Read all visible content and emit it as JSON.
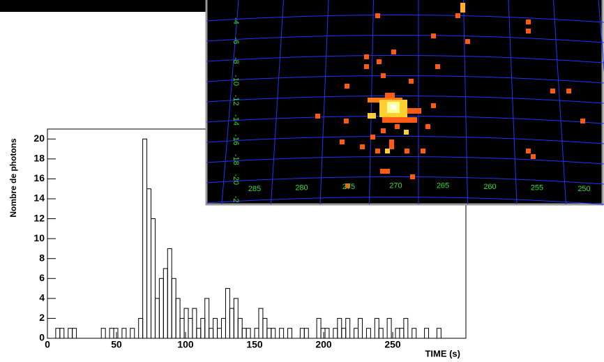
{
  "chart_data": [
    {
      "type": "histogram",
      "ylabel": "Nombre de photons",
      "xlabel": "TIME (s)",
      "bins": [
        0,
        3,
        6,
        9,
        12,
        15,
        18,
        21,
        24,
        27,
        30,
        33,
        36,
        39,
        42,
        45,
        48,
        51,
        54,
        57,
        60,
        63,
        66,
        69,
        72,
        75,
        78,
        81,
        84,
        87,
        90,
        93,
        96,
        99,
        102,
        105,
        108,
        111,
        114,
        117,
        120,
        123,
        126,
        129,
        132,
        135,
        138,
        141,
        144,
        147,
        150,
        153,
        156,
        159,
        162,
        165,
        168,
        171,
        174,
        177,
        180,
        183,
        186,
        189,
        192,
        195,
        198,
        201,
        204,
        207,
        210,
        213,
        216,
        219,
        222,
        225,
        228,
        231,
        234,
        237,
        240,
        243,
        246,
        249,
        252,
        255,
        258,
        261,
        264,
        267,
        270,
        273,
        276,
        279,
        282,
        285,
        288,
        291,
        294,
        297,
        300
      ],
      "values": [
        0,
        0,
        1,
        1,
        0,
        1,
        1,
        0,
        0,
        0,
        0,
        0,
        0,
        1,
        0,
        1,
        1,
        0,
        1,
        0,
        1,
        0,
        2,
        20,
        15,
        12,
        4,
        6,
        7,
        9,
        6,
        4,
        2,
        3,
        2,
        3,
        1,
        2,
        4,
        1,
        2,
        1,
        2,
        5,
        3,
        4,
        2,
        1,
        1,
        0,
        1,
        3,
        2,
        1,
        1,
        0,
        1,
        0,
        1,
        0,
        0,
        1,
        1,
        0,
        0,
        2,
        1,
        1,
        0,
        1,
        2,
        1,
        2,
        0,
        1,
        2,
        0,
        1,
        0,
        2,
        1,
        0,
        2,
        0,
        1,
        1,
        2,
        0,
        1,
        0,
        0,
        1,
        0,
        0,
        1,
        0,
        0,
        0,
        0,
        0
      ],
      "color": "#000000",
      "xlim": [
        0,
        303
      ],
      "ylim": [
        0,
        21
      ],
      "xticks": [
        0,
        50,
        100,
        150,
        200,
        250
      ],
      "yticks": [
        0,
        2,
        4,
        6,
        8,
        10,
        12,
        14,
        16,
        18,
        20
      ]
    },
    {
      "type": "sky-map",
      "ra_labels": [
        "285",
        "280",
        "275",
        "270",
        "265",
        "260",
        "255",
        "250"
      ],
      "dec_labels": [
        "-4",
        "-6",
        "-8",
        "-10",
        "-12",
        "-14",
        "-16",
        "-18",
        "-20",
        "-2"
      ],
      "label_color": "#33dd33",
      "grid_color": "#2233ff"
    }
  ]
}
